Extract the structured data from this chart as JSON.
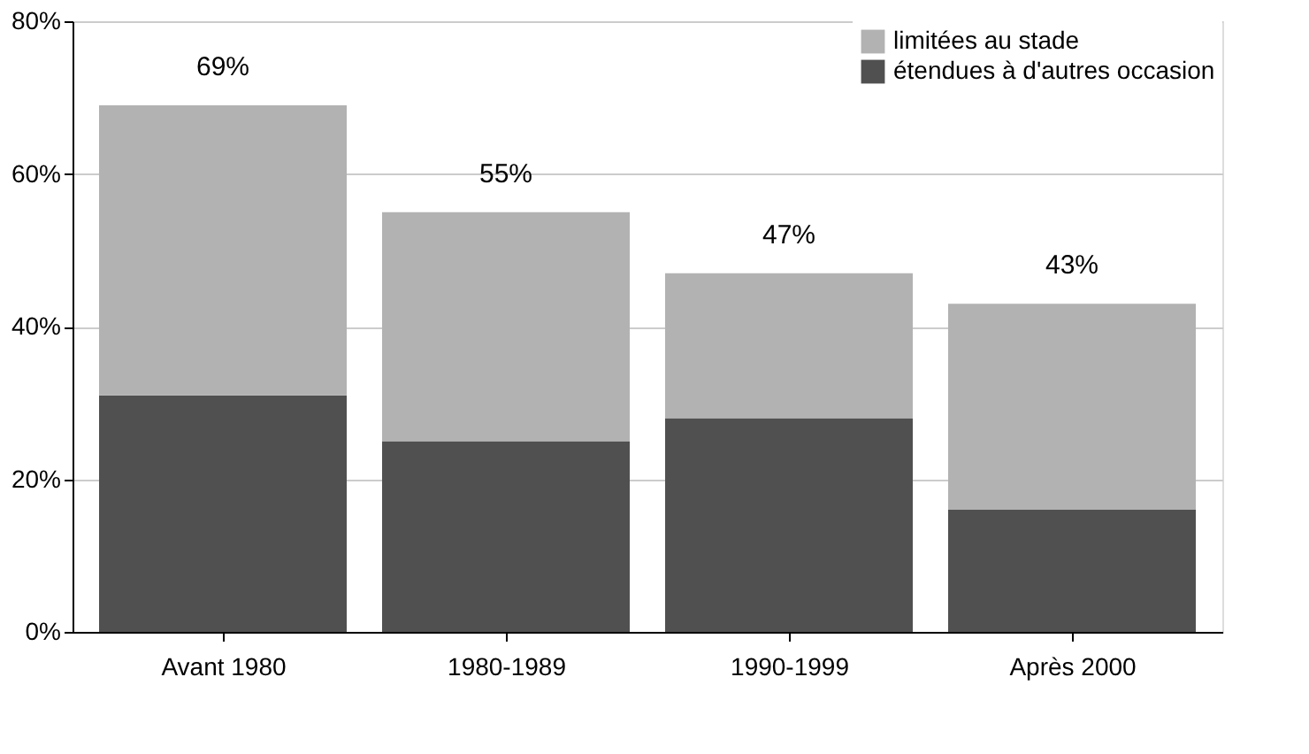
{
  "chart_data": {
    "type": "bar",
    "stacked": true,
    "categories": [
      "Avant 1980",
      "1980-1989",
      "1990-1999",
      "Après 2000"
    ],
    "series": [
      {
        "name": "étendues à d'autres occasion",
        "color": "#505050",
        "values": [
          31,
          25,
          28,
          16
        ]
      },
      {
        "name": "limitées au stade",
        "color": "#b2b2b2",
        "values": [
          38,
          30,
          19,
          27
        ]
      }
    ],
    "totals": [
      "69%",
      "55%",
      "47%",
      "43%"
    ],
    "ylim": [
      0,
      80
    ],
    "yticks": [
      {
        "value": 0,
        "label": "0%"
      },
      {
        "value": 20,
        "label": "20%"
      },
      {
        "value": 40,
        "label": "40%"
      },
      {
        "value": 60,
        "label": "60%"
      },
      {
        "value": 80,
        "label": "80%"
      }
    ],
    "grid": "y",
    "legend": "top right"
  }
}
